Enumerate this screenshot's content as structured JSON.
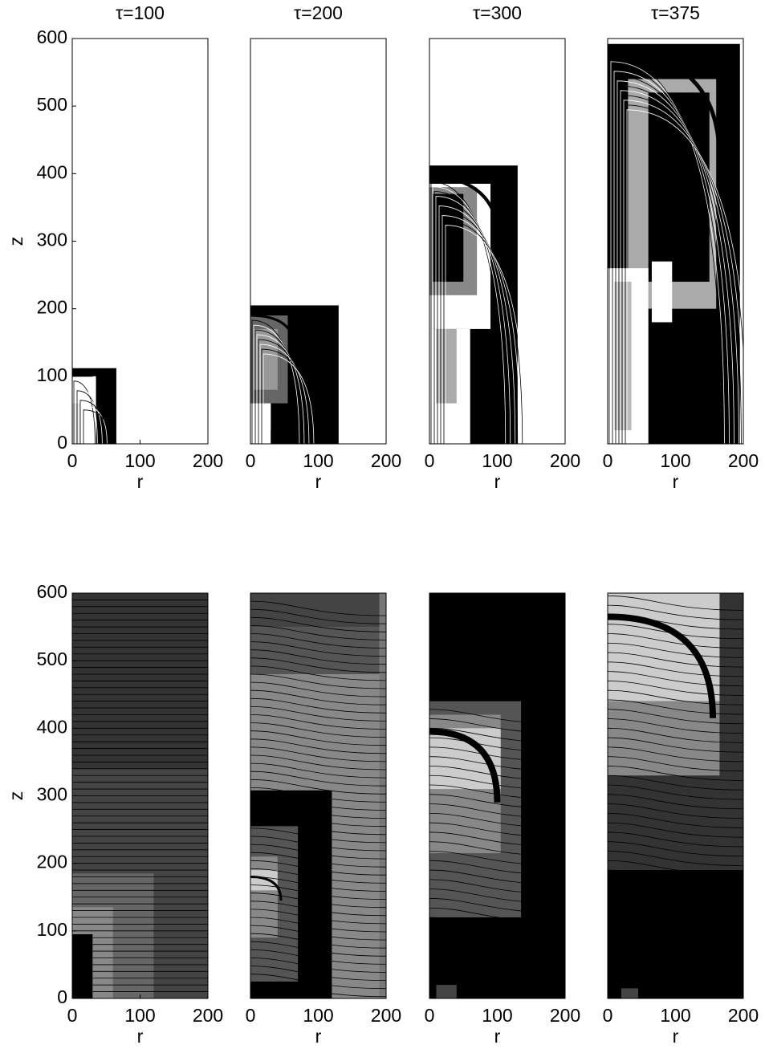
{
  "chart_data": [
    {
      "type": "image",
      "title": "τ=100",
      "xlabel": "r",
      "ylabel": "z",
      "xlim": [
        0,
        200
      ],
      "ylim": [
        0,
        600
      ],
      "xticks": [
        0,
        100,
        200
      ],
      "yticks": [
        0,
        100,
        200,
        300,
        400,
        500,
        600
      ]
    },
    {
      "type": "image",
      "title": "τ=200",
      "xlabel": "r",
      "xlim": [
        0,
        200
      ],
      "ylim": [
        0,
        600
      ],
      "xticks": [
        0,
        100,
        200
      ]
    },
    {
      "type": "image",
      "title": "τ=300",
      "xlabel": "r",
      "xlim": [
        0,
        200
      ],
      "ylim": [
        0,
        600
      ],
      "xticks": [
        0,
        100,
        200
      ]
    },
    {
      "type": "image",
      "title": "τ=375",
      "xlabel": "r",
      "xlim": [
        0,
        200
      ],
      "ylim": [
        0,
        600
      ],
      "xticks": [
        0,
        100,
        200
      ]
    },
    {
      "type": "image",
      "xlabel": "r",
      "ylabel": "z",
      "xlim": [
        0,
        200
      ],
      "ylim": [
        0,
        600
      ],
      "xticks": [
        0,
        100,
        200
      ],
      "yticks": [
        0,
        100,
        200,
        300,
        400,
        500,
        600
      ]
    },
    {
      "type": "image",
      "xlabel": "r",
      "xlim": [
        0,
        200
      ],
      "ylim": [
        0,
        600
      ],
      "xticks": [
        0,
        100,
        200
      ]
    },
    {
      "type": "image",
      "xlabel": "r",
      "xlim": [
        0,
        200
      ],
      "ylim": [
        0,
        600
      ],
      "xticks": [
        0,
        100,
        200
      ]
    },
    {
      "type": "image",
      "xlabel": "r",
      "xlim": [
        0,
        200
      ],
      "ylim": [
        0,
        600
      ],
      "xticks": [
        0,
        100,
        200
      ]
    }
  ]
}
